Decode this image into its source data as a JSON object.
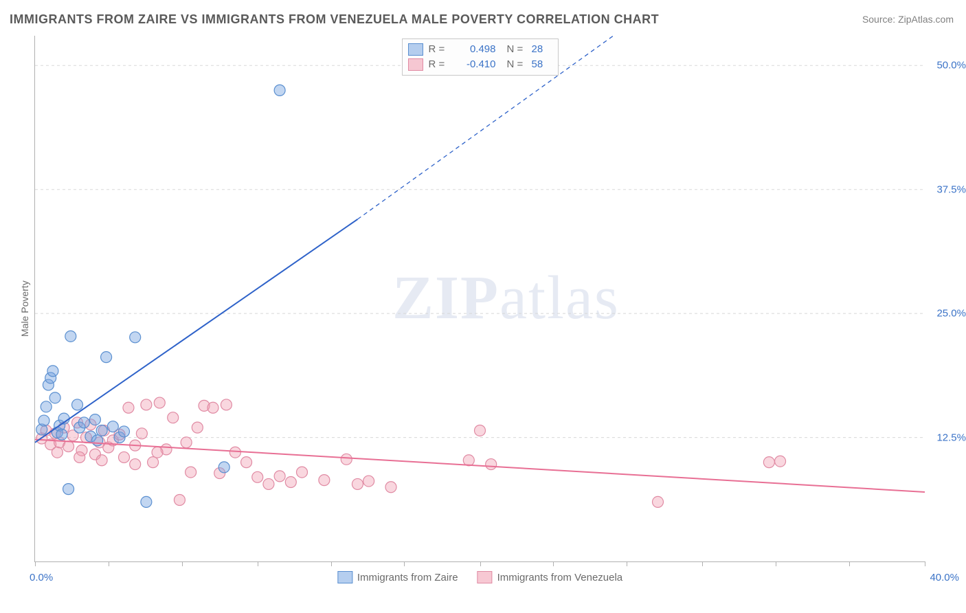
{
  "title": "IMMIGRANTS FROM ZAIRE VS IMMIGRANTS FROM VENEZUELA MALE POVERTY CORRELATION CHART",
  "source": "Source: ZipAtlas.com",
  "watermark_a": "ZIP",
  "watermark_b": "atlas",
  "ylabel": "Male Poverty",
  "chart": {
    "type": "scatter",
    "xlim": [
      0,
      40
    ],
    "ylim": [
      0,
      53
    ],
    "x_axis_labels": {
      "min": "0.0%",
      "max": "40.0%"
    },
    "y_ticks": [
      12.5,
      25.0,
      37.5,
      50.0
    ],
    "y_tick_labels": [
      "12.5%",
      "25.0%",
      "37.5%",
      "50.0%"
    ],
    "x_minor_ticks": [
      0,
      3.3,
      6.6,
      10,
      13.3,
      16.6,
      20,
      23.3,
      26.6,
      30,
      33.3,
      36.6,
      40
    ],
    "grid_color": "#d8d8d8",
    "axis_color": "#b0b0b0",
    "label_color": "#3b73c7",
    "series": [
      {
        "name": "Immigrants from Zaire",
        "marker_color_fill": "rgba(120,165,225,0.45)",
        "marker_color_stroke": "#5a8fd0",
        "marker_radius": 8,
        "points": [
          [
            0.3,
            13.3
          ],
          [
            0.4,
            14.2
          ],
          [
            0.5,
            15.6
          ],
          [
            0.6,
            17.8
          ],
          [
            0.7,
            18.5
          ],
          [
            0.8,
            19.2
          ],
          [
            1.0,
            13.0
          ],
          [
            1.1,
            13.7
          ],
          [
            1.2,
            12.8
          ],
          [
            1.3,
            14.4
          ],
          [
            1.5,
            7.3
          ],
          [
            1.6,
            22.7
          ],
          [
            2.0,
            13.5
          ],
          [
            2.2,
            14.0
          ],
          [
            2.5,
            12.6
          ],
          [
            2.7,
            14.3
          ],
          [
            2.8,
            12.2
          ],
          [
            3.0,
            13.2
          ],
          [
            3.2,
            20.6
          ],
          [
            3.5,
            13.6
          ],
          [
            3.8,
            12.5
          ],
          [
            4.0,
            13.1
          ],
          [
            4.5,
            22.6
          ],
          [
            5.0,
            6.0
          ],
          [
            8.5,
            9.5
          ],
          [
            11.0,
            47.5
          ],
          [
            1.9,
            15.8
          ],
          [
            0.9,
            16.5
          ]
        ],
        "trend": {
          "solid": {
            "x1": 0,
            "y1": 12.0,
            "x2": 14.5,
            "y2": 34.5
          },
          "dashed": {
            "x1": 14.5,
            "y1": 34.5,
            "x2": 26.0,
            "y2": 53.0
          },
          "color": "#2e62c9",
          "width": 2
        },
        "stats": {
          "R_label": "R =",
          "R": "0.498",
          "N_label": "N =",
          "N": "28"
        }
      },
      {
        "name": "Immigrants from Venezuela",
        "marker_color_fill": "rgba(240,155,175,0.40)",
        "marker_color_stroke": "#e08aa3",
        "marker_radius": 8,
        "points": [
          [
            0.3,
            12.4
          ],
          [
            0.5,
            13.2
          ],
          [
            0.7,
            11.8
          ],
          [
            0.9,
            12.9
          ],
          [
            1.1,
            12.0
          ],
          [
            1.3,
            13.5
          ],
          [
            1.5,
            11.6
          ],
          [
            1.7,
            12.7
          ],
          [
            1.9,
            14.0
          ],
          [
            2.1,
            11.2
          ],
          [
            2.3,
            12.5
          ],
          [
            2.5,
            13.8
          ],
          [
            2.7,
            10.8
          ],
          [
            2.9,
            12.0
          ],
          [
            3.1,
            13.2
          ],
          [
            3.3,
            11.5
          ],
          [
            3.5,
            12.2
          ],
          [
            3.8,
            12.8
          ],
          [
            4.0,
            10.5
          ],
          [
            4.2,
            15.5
          ],
          [
            4.5,
            11.7
          ],
          [
            4.8,
            12.9
          ],
          [
            5.0,
            15.8
          ],
          [
            5.3,
            10.0
          ],
          [
            5.6,
            16.0
          ],
          [
            5.9,
            11.3
          ],
          [
            6.2,
            14.5
          ],
          [
            6.5,
            6.2
          ],
          [
            6.8,
            12.0
          ],
          [
            7.0,
            9.0
          ],
          [
            7.3,
            13.5
          ],
          [
            7.6,
            15.7
          ],
          [
            8.0,
            15.5
          ],
          [
            8.3,
            8.9
          ],
          [
            8.6,
            15.8
          ],
          [
            9.0,
            11.0
          ],
          [
            9.5,
            10.0
          ],
          [
            10.0,
            8.5
          ],
          [
            10.5,
            7.8
          ],
          [
            11.0,
            8.6
          ],
          [
            11.5,
            8.0
          ],
          [
            12.0,
            9.0
          ],
          [
            13.0,
            8.2
          ],
          [
            14.0,
            10.3
          ],
          [
            14.5,
            7.8
          ],
          [
            15.0,
            8.1
          ],
          [
            16.0,
            7.5
          ],
          [
            19.5,
            10.2
          ],
          [
            20.0,
            13.2
          ],
          [
            20.5,
            9.8
          ],
          [
            28.0,
            6.0
          ],
          [
            33.0,
            10.0
          ],
          [
            33.5,
            10.1
          ],
          [
            1.0,
            11.0
          ],
          [
            2.0,
            10.5
          ],
          [
            3.0,
            10.2
          ],
          [
            4.5,
            9.8
          ],
          [
            5.5,
            11.0
          ]
        ],
        "trend": {
          "solid": {
            "x1": 0,
            "y1": 12.3,
            "x2": 40,
            "y2": 7.0
          },
          "color": "#e86f94",
          "width": 2
        },
        "stats": {
          "R_label": "R =",
          "R": "-0.410",
          "N_label": "N =",
          "N": "58"
        }
      }
    ]
  }
}
